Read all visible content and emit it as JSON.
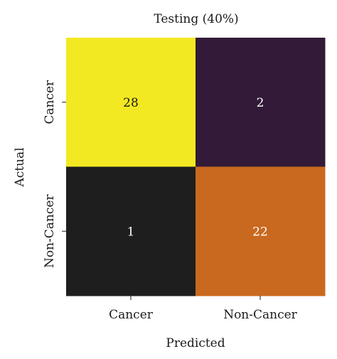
{
  "chart_data": {
    "type": "heatmap",
    "title": "Testing (40%)",
    "xlabel": "Predicted",
    "ylabel": "Actual",
    "x_categories": [
      "Cancer",
      "Non-Cancer"
    ],
    "y_categories": [
      "Cancer",
      "Non-Cancer"
    ],
    "values": [
      [
        28,
        2
      ],
      [
        1,
        22
      ]
    ],
    "cell_colors": [
      [
        "#f3e922",
        "#331a38"
      ],
      [
        "#1e1e1e",
        "#c9691f"
      ]
    ],
    "text_colors": [
      [
        "#1a1a1a",
        "#ffffff"
      ],
      [
        "#ffffff",
        "#ffffff"
      ]
    ]
  }
}
